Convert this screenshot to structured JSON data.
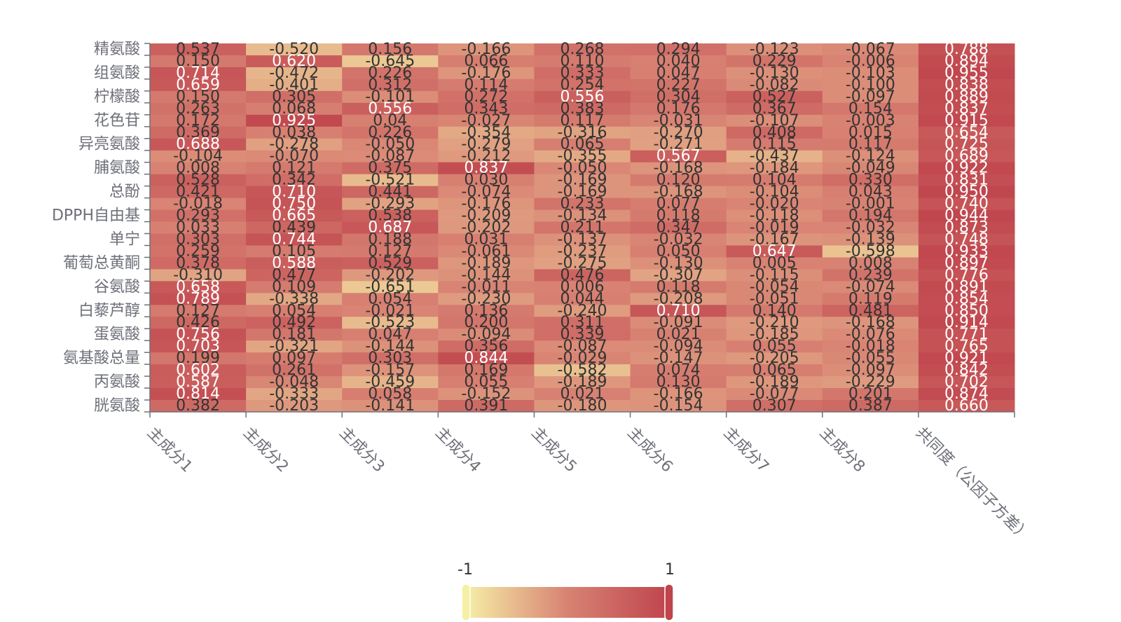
{
  "chart_data": {
    "type": "heatmap",
    "rows": [
      "精氨酸",
      "组氨酸",
      "柠檬酸",
      "花色苷",
      "异亮氨酸",
      "脯氨酸",
      "总酚",
      "DPPH自由基",
      "单宁",
      "葡萄总黄酮",
      "谷氨酸",
      "白藜芦醇",
      "蛋氨酸",
      "氨基酸总量",
      "丙氨酸",
      "胱氨酸"
    ],
    "row_label_every": 2,
    "columns": [
      "主成分1",
      "主成分2",
      "主成分3",
      "主成分4",
      "主成分5",
      "主成分6",
      "主成分7",
      "主成分8",
      "共同度（公因子方差）"
    ],
    "values": [
      [
        "0.537",
        "-0.520",
        "0.156",
        "-0.166",
        "0.268",
        "0.294",
        "-0.123",
        "-0.067",
        "0.788"
      ],
      [
        "0.150",
        "0.620",
        "-0.645",
        "0.066",
        "0.110",
        "0.040",
        "0.229",
        "-0.006",
        "0.894"
      ],
      [
        "0.714",
        "-0.472",
        "0.226",
        "-0.176",
        "0.333",
        "0.047",
        "-0.130",
        "-0.103",
        "0.955"
      ],
      [
        "0.659",
        "-0.401",
        "0.312",
        "0.114",
        "0.254",
        "0.227",
        "-0.082",
        "-0.100",
        "0.838"
      ],
      [
        "0.150",
        "0.305",
        "-0.101",
        "0.272",
        "0.556",
        "0.304",
        "0.527",
        "-0.097",
        "0.889"
      ],
      [
        "0.263",
        "0.068",
        "0.556",
        "0.343",
        "0.383",
        "0.176",
        "0.367",
        "0.154",
        "0.837"
      ],
      [
        "0.172",
        "0.925",
        "0.04",
        "-0.027",
        "0.117",
        "-0.031",
        "-0.107",
        "-0.003",
        "0.915"
      ],
      [
        "0.369",
        "0.038",
        "0.226",
        "-0.354",
        "-0.316",
        "-0.270",
        "0.408",
        "0.015",
        "0.654"
      ],
      [
        "0.688",
        "-0.278",
        "-0.050",
        "-0.279",
        "0.065",
        "-0.271",
        "0.115",
        "0.117",
        "0.725"
      ],
      [
        "-0.104",
        "-0.070",
        "-0.087",
        "-0.212",
        "-0.355",
        "0.567",
        "-0.437",
        "-0.124",
        "0.689"
      ],
      [
        "0.008",
        "0.121",
        "0.375",
        "0.837",
        "-0.050",
        "-0.168",
        "-0.184",
        "-0.049",
        "0.922"
      ],
      [
        "0.528",
        "0.342",
        "-0.521",
        "0.030",
        "-0.169",
        "0.120",
        "0.104",
        "0.330",
        "0.831"
      ],
      [
        "0.421",
        "0.710",
        "0.441",
        "-0.074",
        "-0.169",
        "-0.168",
        "-0.104",
        "0.043",
        "0.950"
      ],
      [
        "-0.018",
        "0.750",
        "-0.293",
        "-0.176",
        "0.233",
        "0.077",
        "-0.020",
        "-0.001",
        "0.740"
      ],
      [
        "0.293",
        "0.665",
        "0.538",
        "-0.209",
        "-0.134",
        "0.118",
        "-0.118",
        "0.194",
        "0.944"
      ],
      [
        "0.033",
        "0.439",
        "0.687",
        "-0.202",
        "0.211",
        "0.347",
        "-0.019",
        "-0.032",
        "0.873"
      ],
      [
        "0.303",
        "0.744",
        "0.188",
        "0.031",
        "-0.137",
        "-0.032",
        "-0.167",
        "-0.139",
        "0.748"
      ],
      [
        "0.259",
        "0.105",
        "0.127",
        "-0.061",
        "-0.237",
        "0.050",
        "0.647",
        "-0.598",
        "0.933"
      ],
      [
        "0.378",
        "0.588",
        "0.529",
        "-0.189",
        "-0.275",
        "-0.130",
        "0.005",
        "0.008",
        "0.897"
      ],
      [
        "-0.310",
        "0.477",
        "-0.202",
        "-0.144",
        "0.476",
        "-0.307",
        "-0.115",
        "0.239",
        "0.776"
      ],
      [
        "0.658",
        "0.109",
        "-0.651",
        "-0.011",
        "0.006",
        "0.118",
        "-0.054",
        "-0.074",
        "0.891"
      ],
      [
        "0.789",
        "-0.338",
        "0.054",
        "-0.230",
        "0.044",
        "-0.208",
        "-0.051",
        "0.119",
        "0.854"
      ],
      [
        "0.127",
        "0.054",
        "-0.021",
        "0.136",
        "-0.240",
        "0.710",
        "0.140",
        "0.481",
        "0.850"
      ],
      [
        "0.426",
        "0.492",
        "-0.523",
        "0.200",
        "0.311",
        "-0.091",
        "-0.210",
        "-0.168",
        "0.914"
      ],
      [
        "0.756",
        "0.181",
        "0.047",
        "-0.094",
        "0.339",
        "0.021",
        "-0.185",
        "-0.076",
        "0.771"
      ],
      [
        "0.703",
        "-0.321",
        "-0.144",
        "0.356",
        "-0.087",
        "-0.094",
        "0.055",
        "-0.018",
        "0.765"
      ],
      [
        "0.199",
        "0.097",
        "0.303",
        "0.844",
        "-0.029",
        "-0.147",
        "-0.205",
        "-0.055",
        "0.921"
      ],
      [
        "0.602",
        "0.261",
        "-0.157",
        "0.169",
        "-0.582",
        "0.074",
        "0.065",
        "-0.097",
        "0.842"
      ],
      [
        "0.587",
        "-0.048",
        "-0.459",
        "0.055",
        "-0.189",
        "0.130",
        "-0.189",
        "-0.229",
        "0.702"
      ],
      [
        "0.814",
        "-0.333",
        "0.058",
        "-0.152",
        "0.021",
        "-0.166",
        "-0.077",
        "0.201",
        "0.874"
      ],
      [
        "0.382",
        "-0.203",
        "-0.141",
        "0.391",
        "-0.180",
        "-0.154",
        "0.307",
        "0.387",
        "0.660"
      ]
    ],
    "visual_map": {
      "min": -1,
      "max": 1,
      "min_label": "-1",
      "max_label": "1",
      "colors": [
        "#f6efa6",
        "#d88273",
        "#bf444c"
      ]
    },
    "label_threshold": 0.55,
    "colors": {
      "label_dark": "#333333",
      "label_light": "#ffffff",
      "axis": "#6e7079"
    }
  }
}
